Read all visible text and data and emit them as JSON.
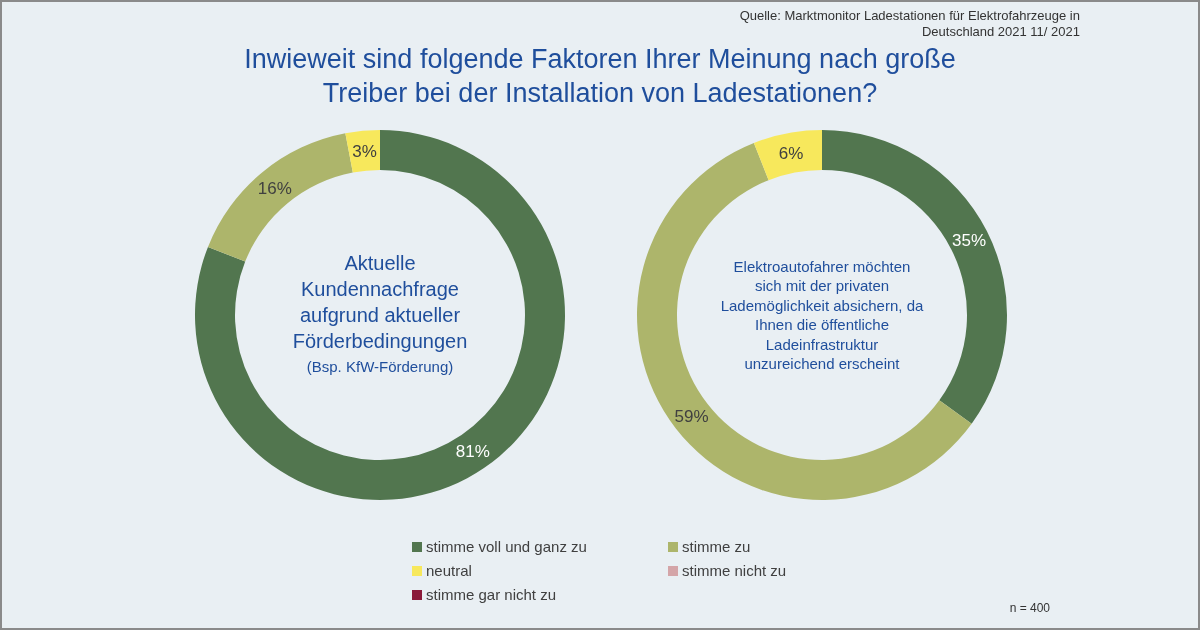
{
  "chart_data": [
    {
      "type": "donut",
      "title": "Inwieweit sind folgende Faktoren Ihrer Meinung nach große Treiber bei der Installation von Ladestationen?",
      "subtitle": "Aktuelle Kundennachfrage aufgrund aktueller Förderbedingungen",
      "annotations": [
        "Quelle: Marktmonitor Ladestationen für Elektrofahrzeuge in Deutschland 2021 11/ 2021",
        "n = 400",
        "(Bsp. KfW-Förderung)"
      ],
      "categories": [
        "stimme voll und ganz zu",
        "stimme zu",
        "neutral",
        "stimme nicht zu",
        "stimme gar nicht zu"
      ],
      "values": [
        81,
        16,
        3,
        0,
        0
      ],
      "value_labels": [
        "81%",
        "16%",
        "3%",
        null,
        null
      ],
      "colors": [
        "#52764f",
        "#adb56b",
        "#f7e85c",
        "#d4a5a8",
        "#8b1a3a"
      ],
      "legend": "bottom"
    },
    {
      "type": "donut",
      "subtitle": "Elektroautofahrer möchten sich mit der privaten Lademöglichkeit absichern, da Ihnen die öffentliche Ladeinfrastruktur unzureichend erscheint",
      "categories": [
        null,
        null,
        null,
        null,
        null
      ],
      "values": [
        35,
        59,
        6,
        0,
        0
      ],
      "value_labels": [
        "35%",
        "59%",
        "6%",
        null,
        null
      ],
      "colors": [
        "#52764f",
        "#adb56b",
        "#f7e85c",
        "#d4a5a8",
        "#8b1a3a"
      ]
    }
  ]
}
